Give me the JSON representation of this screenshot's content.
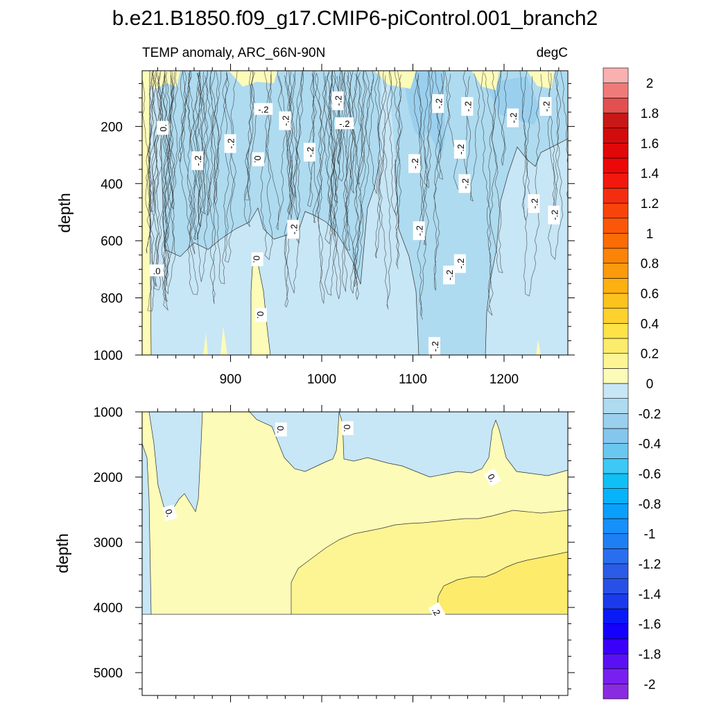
{
  "chart_data": {
    "type": "heatmap",
    "title": "b.e21.B1850.f09_g17.CMIP6-piControl.001_branch2",
    "variable_label": "TEMP anomaly, ARC_66N-90N",
    "units_label": "degC",
    "x_axis": {
      "range": [
        803,
        1270
      ],
      "ticks": [
        900,
        1000,
        1100,
        1200
      ],
      "tick_labels": [
        "900",
        "1000",
        "1100",
        "1200"
      ],
      "label": ""
    },
    "panels": [
      {
        "name": "upper",
        "ylabel": "depth",
        "y_range": [
          5,
          1000
        ],
        "y_ticks": [
          200,
          400,
          600,
          800,
          1000
        ],
        "y_tick_labels": [
          "200",
          "400",
          "600",
          "800",
          "1000"
        ],
        "contour_labels": [
          {
            "text": "-.2",
            "x": 936,
            "y": 140,
            "rot": 0
          },
          {
            "text": "-.2",
            "x": 1018,
            "y": 110,
            "rot": -90
          },
          {
            "text": "-.2",
            "x": 1128,
            "y": 120,
            "rot": -90
          },
          {
            "text": "-.2",
            "x": 1160,
            "y": 130,
            "rot": -90
          },
          {
            "text": "-.2",
            "x": 1210,
            "y": 170,
            "rot": -90
          },
          {
            "text": "-.2",
            "x": 1246,
            "y": 130,
            "rot": -90
          },
          {
            "text": "-.2",
            "x": 960,
            "y": 180,
            "rot": -90
          },
          {
            "text": "-.2",
            "x": 1025,
            "y": 190,
            "rot": 0
          },
          {
            "text": "-.2",
            "x": 900,
            "y": 260,
            "rot": -90
          },
          {
            "text": "-.2",
            "x": 864,
            "y": 320,
            "rot": -90
          },
          {
            "text": "-.2",
            "x": 987,
            "y": 290,
            "rot": -90
          },
          {
            "text": "-.2",
            "x": 1102,
            "y": 330,
            "rot": -90
          },
          {
            "text": "-.2",
            "x": 1152,
            "y": 280,
            "rot": -90
          },
          {
            "text": "-.2",
            "x": 1157,
            "y": 400,
            "rot": -90
          },
          {
            "text": "-.2",
            "x": 1152,
            "y": 680,
            "rot": -90
          },
          {
            "text": "-.2",
            "x": 1233,
            "y": 470,
            "rot": -90
          },
          {
            "text": "-.2",
            "x": 1255,
            "y": 510,
            "rot": -90
          },
          {
            "text": "-.2",
            "x": 969,
            "y": 560,
            "rot": -90
          },
          {
            "text": "-.2",
            "x": 1107,
            "y": 565,
            "rot": -90
          },
          {
            "text": "-.2",
            "x": 1140,
            "y": 720,
            "rot": -90
          },
          {
            "text": "-.2",
            "x": 1124,
            "y": 970,
            "rot": -90
          },
          {
            "text": "0.",
            "x": 826,
            "y": 205,
            "rot": -90
          },
          {
            "text": "0.",
            "x": 930,
            "y": 315,
            "rot": 90
          },
          {
            "text": "0.",
            "x": 929,
            "y": 665,
            "rot": 90
          },
          {
            "text": "0.",
            "x": 933,
            "y": 860,
            "rot": 90
          },
          {
            "text": ".0",
            "x": 819,
            "y": 705,
            "rot": 0
          }
        ]
      },
      {
        "name": "lower",
        "ylabel": "depth",
        "y_range": [
          1000,
          5350
        ],
        "y_ticks": [
          1000,
          2000,
          3000,
          4000,
          5000
        ],
        "y_tick_labels": [
          "1000",
          "2000",
          "3000",
          "4000",
          "5000"
        ],
        "contour_labels": [
          {
            "text": "0.",
            "x": 955,
            "y": 1270,
            "rot": 90
          },
          {
            "text": "0.",
            "x": 1028,
            "y": 1250,
            "rot": 90
          },
          {
            "text": "0.",
            "x": 1187,
            "y": 2010,
            "rot": 60
          },
          {
            "text": "0.",
            "x": 833,
            "y": 2550,
            "rot": 75
          },
          {
            "text": ".2",
            "x": 1126,
            "y": 4060,
            "rot": 60
          }
        ]
      }
    ],
    "colorbar": {
      "levels": [
        -2.1,
        -2.0,
        -1.9,
        -1.8,
        -1.7,
        -1.6,
        -1.5,
        -1.4,
        -1.3,
        -1.2,
        -1.1,
        -1.0,
        -0.9,
        -0.8,
        -0.7,
        -0.6,
        -0.5,
        -0.4,
        -0.3,
        -0.2,
        -0.1,
        0.0,
        0.1,
        0.2,
        0.3,
        0.4,
        0.5,
        0.6,
        0.7,
        0.8,
        0.9,
        1.0,
        1.1,
        1.2,
        1.3,
        1.4,
        1.5,
        1.6,
        1.7,
        1.8,
        1.9,
        2.0,
        2.1
      ],
      "colors": [
        "#8a2be2",
        "#7820f0",
        "#5a10f5",
        "#3a00fa",
        "#1500ff",
        "#0a1af5",
        "#1a3aec",
        "#2850e6",
        "#2a5ce8",
        "#2a6ef0",
        "#1e7ff5",
        "#1790fa",
        "#0a9ffb",
        "#08b2fb",
        "#10c0f5",
        "#3ec8f5",
        "#6ac8f0",
        "#85c6ee",
        "#9ad0ee",
        "#aedbf0",
        "#c7e6f6",
        "#fdfbb8",
        "#fdf594",
        "#fdeb6c",
        "#fde248",
        "#fdd12e",
        "#fcc21e",
        "#fcb012",
        "#fb9a0c",
        "#fb8408",
        "#fa6c06",
        "#fa5808",
        "#f8440b",
        "#f52d10",
        "#f2180d",
        "#ec0808",
        "#e00808",
        "#d20c0c",
        "#c81818",
        "#e25050",
        "#ef7a7a",
        "#f8b0b0"
      ],
      "tick_labels": [
        "2",
        "1.8",
        "1.6",
        "1.4",
        "1.2",
        "1",
        "0.8",
        "0.6",
        "0.4",
        "0.2",
        "0",
        "-0.2",
        "-0.4",
        "-0.6",
        "-0.8",
        "-1",
        "-1.2",
        "-1.4",
        "-1.6",
        "-1.8",
        "-2"
      ],
      "tick_values": [
        2.0,
        1.8,
        1.6,
        1.4,
        1.2,
        1.0,
        0.8,
        0.6,
        0.4,
        0.2,
        0.0,
        -0.2,
        -0.4,
        -0.6,
        -0.8,
        -1.0,
        -1.2,
        -1.4,
        -1.6,
        -1.8,
        -2.0
      ]
    }
  }
}
